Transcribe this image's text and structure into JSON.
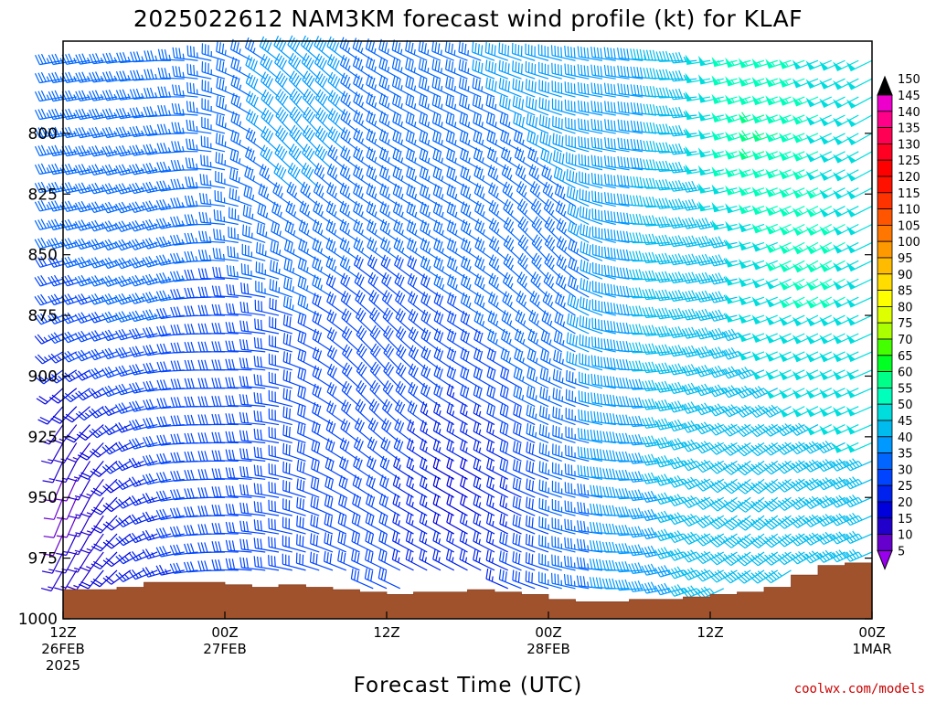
{
  "chart_data": {
    "type": "wind_barb_time_height",
    "title": "2025022612 NAM3KM forecast wind profile (kt) for KLAF",
    "xlabel": "Forecast Time (UTC)",
    "ylabel": "",
    "y_axis": {
      "reversed": true,
      "range": [
        1000,
        762
      ],
      "ticks": [
        800,
        825,
        850,
        875,
        900,
        925,
        950,
        975,
        1000
      ]
    },
    "x_axis": {
      "range_hours": [
        0,
        60
      ],
      "ticks": [
        {
          "hour": 0,
          "lines": [
            "12Z",
            "26FEB",
            "2025"
          ]
        },
        {
          "hour": 12,
          "lines": [
            "00Z",
            "27FEB"
          ]
        },
        {
          "hour": 24,
          "lines": [
            "12Z"
          ]
        },
        {
          "hour": 36,
          "lines": [
            "00Z",
            "28FEB"
          ]
        },
        {
          "hour": 48,
          "lines": [
            "12Z"
          ]
        },
        {
          "hour": 60,
          "lines": [
            "00Z",
            "1MAR"
          ]
        }
      ]
    },
    "surface_pressure": [
      {
        "h": 0,
        "p": 988
      },
      {
        "h": 2,
        "p": 988
      },
      {
        "h": 4,
        "p": 987
      },
      {
        "h": 6,
        "p": 985
      },
      {
        "h": 8,
        "p": 985
      },
      {
        "h": 10,
        "p": 985
      },
      {
        "h": 12,
        "p": 986
      },
      {
        "h": 14,
        "p": 987
      },
      {
        "h": 16,
        "p": 986
      },
      {
        "h": 18,
        "p": 987
      },
      {
        "h": 20,
        "p": 988
      },
      {
        "h": 22,
        "p": 989
      },
      {
        "h": 24,
        "p": 990
      },
      {
        "h": 26,
        "p": 989
      },
      {
        "h": 28,
        "p": 989
      },
      {
        "h": 30,
        "p": 988
      },
      {
        "h": 32,
        "p": 989
      },
      {
        "h": 34,
        "p": 990
      },
      {
        "h": 36,
        "p": 992
      },
      {
        "h": 38,
        "p": 993
      },
      {
        "h": 40,
        "p": 993
      },
      {
        "h": 42,
        "p": 992
      },
      {
        "h": 44,
        "p": 992
      },
      {
        "h": 46,
        "p": 991
      },
      {
        "h": 48,
        "p": 990
      },
      {
        "h": 50,
        "p": 989
      },
      {
        "h": 52,
        "p": 987
      },
      {
        "h": 54,
        "p": 982
      },
      {
        "h": 56,
        "p": 978
      },
      {
        "h": 58,
        "p": 977
      },
      {
        "h": 60,
        "p": 977
      }
    ],
    "wind_profile_samples": [
      {
        "h": 0,
        "level_hpa": 800,
        "speed_kt": 35,
        "dir_deg": 260
      },
      {
        "h": 0,
        "level_hpa": 950,
        "speed_kt": 10,
        "dir_deg": 200
      },
      {
        "h": 6,
        "level_hpa": 850,
        "speed_kt": 35,
        "dir_deg": 250
      },
      {
        "h": 12,
        "level_hpa": 900,
        "speed_kt": 30,
        "dir_deg": 270
      },
      {
        "h": 18,
        "level_hpa": 800,
        "speed_kt": 40,
        "dir_deg": 320
      },
      {
        "h": 24,
        "level_hpa": 900,
        "speed_kt": 30,
        "dir_deg": 320
      },
      {
        "h": 30,
        "level_hpa": 950,
        "speed_kt": 20,
        "dir_deg": 300
      },
      {
        "h": 36,
        "level_hpa": 850,
        "speed_kt": 35,
        "dir_deg": 320
      },
      {
        "h": 42,
        "level_hpa": 800,
        "speed_kt": 40,
        "dir_deg": 280
      },
      {
        "h": 48,
        "level_hpa": 850,
        "speed_kt": 45,
        "dir_deg": 260
      },
      {
        "h": 52,
        "level_hpa": 800,
        "speed_kt": 60,
        "dir_deg": 250
      },
      {
        "h": 52,
        "level_hpa": 950,
        "speed_kt": 45,
        "dir_deg": 230
      },
      {
        "h": 56,
        "level_hpa": 850,
        "speed_kt": 55,
        "dir_deg": 240
      },
      {
        "h": 60,
        "level_hpa": 800,
        "speed_kt": 50,
        "dir_deg": 240
      }
    ],
    "colorbar": {
      "unit": "kt",
      "labels": [
        150,
        145,
        140,
        135,
        130,
        125,
        120,
        115,
        110,
        105,
        100,
        95,
        90,
        85,
        80,
        75,
        70,
        65,
        60,
        55,
        50,
        45,
        40,
        35,
        30,
        25,
        20,
        15,
        10,
        5
      ],
      "colors": [
        "#ff00ff",
        "#ee00cc",
        "#ff0088",
        "#ff0055",
        "#ff0022",
        "#ff0000",
        "#ff1100",
        "#ff3300",
        "#ff5500",
        "#ff7700",
        "#ff9900",
        "#ffbb00",
        "#ffdd00",
        "#ffff00",
        "#ddff00",
        "#aaff00",
        "#44ff00",
        "#00ff22",
        "#00ff88",
        "#00ffbb",
        "#00dddd",
        "#00bbee",
        "#0099ff",
        "#0066ff",
        "#0044ff",
        "#0022ee",
        "#0000dd",
        "#2200cc",
        "#6600cc",
        "#9900ee"
      ]
    },
    "colors": {
      "surface": "#a0522d",
      "surface_edge": "#8a4020",
      "credit": "#cc0000"
    }
  },
  "credit": "coolwx.com/models"
}
